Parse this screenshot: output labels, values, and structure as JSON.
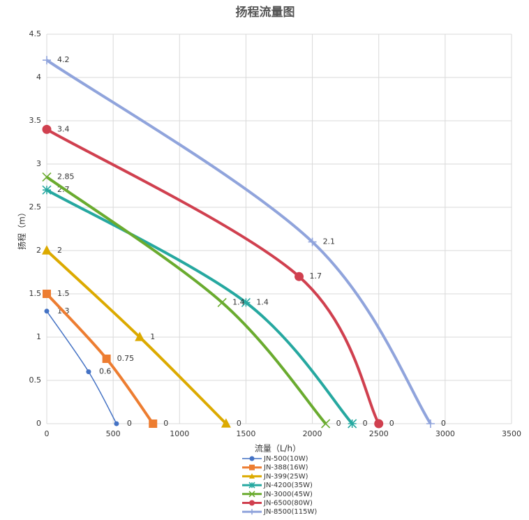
{
  "chart_data": {
    "type": "scatter",
    "title": "扬程流量图",
    "x_label": "流量（L/h）",
    "y_label": "扬程（m）",
    "xlim": [
      0,
      3500
    ],
    "ylim": [
      0,
      4.5
    ],
    "xticks": [
      0,
      500,
      1000,
      1500,
      2000,
      2500,
      3000,
      3500
    ],
    "yticks": [
      0,
      0.5,
      1,
      1.5,
      2,
      2.5,
      3,
      3.5,
      4,
      4.5
    ],
    "grid": true,
    "smooth": true,
    "legend": "bottom",
    "series": [
      {
        "name": "JN-500(10W)",
        "color": "#4472c4",
        "marker": "circle",
        "x": [
          0,
          315,
          525
        ],
        "values": [
          1.3,
          0.6,
          0
        ]
      },
      {
        "name": "JN-388(16W)",
        "color": "#ed7d31",
        "marker": "square",
        "x": [
          0,
          450,
          800
        ],
        "values": [
          1.5,
          0.75,
          0
        ]
      },
      {
        "name": "JN-399(25W)",
        "color": "#dcaa00",
        "marker": "triangle",
        "x": [
          0,
          700,
          1350
        ],
        "values": [
          2,
          1,
          0
        ]
      },
      {
        "name": "JN-4200(35W)",
        "color": "#26a8a0",
        "marker": "star",
        "x": [
          0,
          1500,
          2300
        ],
        "values": [
          2.7,
          1.4,
          0
        ]
      },
      {
        "name": "JN-3000(45W)",
        "color": "#6aab2f",
        "marker": "x",
        "x": [
          0,
          1320,
          2100
        ],
        "values": [
          2.85,
          1.4,
          0
        ]
      },
      {
        "name": "JN-6500(80W)",
        "color": "#d0404f",
        "marker": "circle",
        "x": [
          0,
          1900,
          2500
        ],
        "values": [
          3.4,
          1.7,
          0
        ]
      },
      {
        "name": "JN-8500(115W)",
        "color": "#90a4dc",
        "marker": "plus",
        "x": [
          0,
          2000,
          2890
        ],
        "values": [
          4.2,
          2.1,
          0
        ]
      }
    ]
  }
}
